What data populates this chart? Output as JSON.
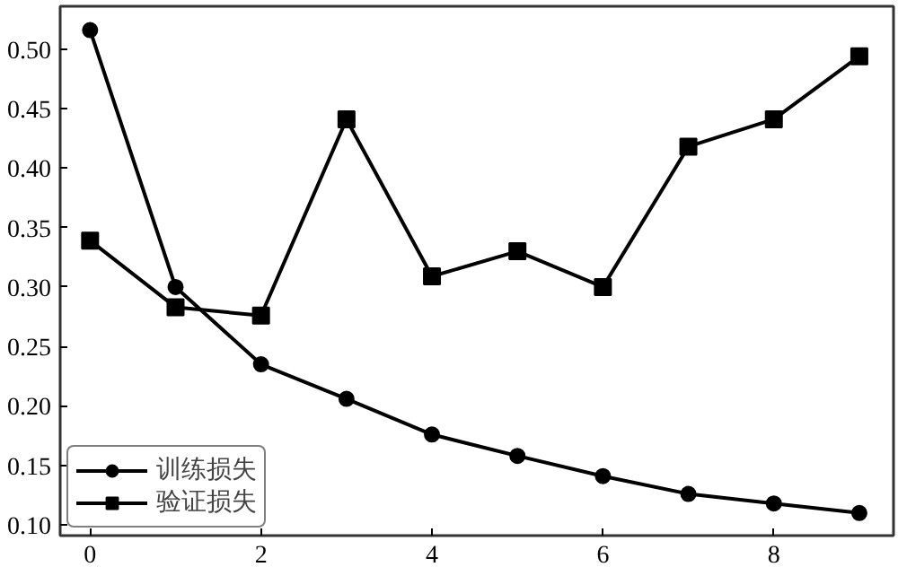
{
  "chart_data": {
    "type": "line",
    "x": [
      0,
      1,
      2,
      3,
      4,
      5,
      6,
      7,
      8,
      9
    ],
    "series": [
      {
        "name": "训练损失",
        "color": "#000000",
        "marker": "circle",
        "values": [
          0.516,
          0.3,
          0.235,
          0.206,
          0.176,
          0.158,
          0.141,
          0.126,
          0.118,
          0.11
        ]
      },
      {
        "name": "验证损失",
        "color": "#000000",
        "marker": "square",
        "values": [
          0.339,
          0.283,
          0.276,
          0.441,
          0.309,
          0.33,
          0.3,
          0.418,
          0.441,
          0.494
        ]
      }
    ],
    "xlim": [
      -0.35,
      9.4
    ],
    "xticks": [
      0,
      2,
      4,
      6,
      8
    ],
    "ylim": [
      0.091,
      0.536
    ],
    "yticks": [
      {
        "value": 0.1,
        "label": "0.10"
      },
      {
        "value": 0.15,
        "label": "0.15"
      },
      {
        "value": 0.2,
        "label": "0.20"
      },
      {
        "value": 0.25,
        "label": "0.25"
      },
      {
        "value": 0.3,
        "label": "0.30"
      },
      {
        "value": 0.35,
        "label": "0.35"
      },
      {
        "value": 0.4,
        "label": "0.40"
      },
      {
        "value": 0.45,
        "label": "0.45"
      },
      {
        "value": 0.5,
        "label": "0.50"
      }
    ],
    "grid": false,
    "legend": "bottom left",
    "line_style": "solid"
  }
}
